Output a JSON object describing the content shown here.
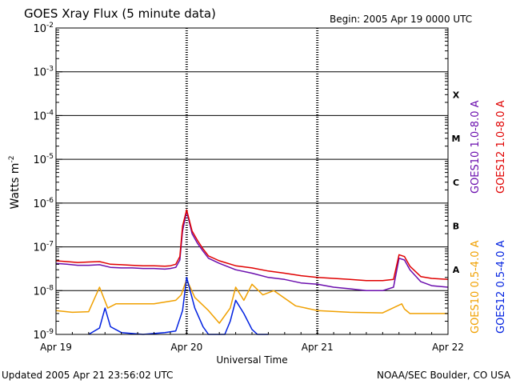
{
  "chart_data": {
    "type": "line",
    "title": "GOES Xray Flux (5 minute data)",
    "begin_label": "Begin:  2005 Apr 19 0000 UTC",
    "xlabel": "Universal Time",
    "ylabel_text": "Watts m",
    "ylabel_exp": "-2",
    "y_scale": "log",
    "ylim": [
      1e-09,
      0.01
    ],
    "xlim": [
      "2005-04-19T00:00",
      "2005-04-22T00:00"
    ],
    "x_ticks": [
      {
        "label": "Apr 19",
        "t": "2005-04-19T00:00"
      },
      {
        "label": "Apr 20",
        "t": "2005-04-20T00:00"
      },
      {
        "label": "Apr 21",
        "t": "2005-04-21T00:00"
      },
      {
        "label": "Apr 22",
        "t": "2005-04-22T00:00"
      }
    ],
    "y_ticks": [
      {
        "base": "10",
        "exp": "-9",
        "value": 1e-09
      },
      {
        "base": "10",
        "exp": "-8",
        "value": 1e-08
      },
      {
        "base": "10",
        "exp": "-7",
        "value": 1e-07
      },
      {
        "base": "10",
        "exp": "-6",
        "value": 1e-06
      },
      {
        "base": "10",
        "exp": "-5",
        "value": 1e-05
      },
      {
        "base": "10",
        "exp": "-4",
        "value": 0.0001
      },
      {
        "base": "10",
        "exp": "-3",
        "value": 0.001
      },
      {
        "base": "10",
        "exp": "-2",
        "value": 0.01
      }
    ],
    "gridlines_at": [
      1e-08,
      1e-07,
      1e-06,
      1e-05,
      0.0001,
      0.001
    ],
    "flare_classes": [
      {
        "label": "X",
        "value": 0.0003
      },
      {
        "label": "M",
        "value": 3e-05
      },
      {
        "label": "C",
        "value": 3e-06
      },
      {
        "label": "B",
        "value": 3e-07
      },
      {
        "label": "A",
        "value": 3e-08
      }
    ],
    "series": [
      {
        "name": "GOES10 1.0-8.0 A",
        "color": "#6a0dad",
        "x": [
          "2005-04-19T00:00",
          "2005-04-19T02:00",
          "2005-04-19T04:00",
          "2005-04-19T06:00",
          "2005-04-19T08:00",
          "2005-04-19T10:00",
          "2005-04-19T12:00",
          "2005-04-19T14:00",
          "2005-04-19T16:00",
          "2005-04-19T18:00",
          "2005-04-19T20:00",
          "2005-04-19T21:00",
          "2005-04-19T22:00",
          "2005-04-19T22:45",
          "2005-04-19T23:15",
          "2005-04-20T00:00",
          "2005-04-20T01:00",
          "2005-04-20T02:00",
          "2005-04-20T03:00",
          "2005-04-20T04:00",
          "2005-04-20T06:00",
          "2005-04-20T09:00",
          "2005-04-20T12:00",
          "2005-04-20T15:00",
          "2005-04-20T18:00",
          "2005-04-20T21:00",
          "2005-04-21T00:00",
          "2005-04-21T03:00",
          "2005-04-21T06:00",
          "2005-04-21T09:00",
          "2005-04-21T12:00",
          "2005-04-21T14:00",
          "2005-04-21T15:00",
          "2005-04-21T16:00",
          "2005-04-21T17:00",
          "2005-04-21T19:00",
          "2005-04-21T21:00",
          "2005-04-21T24:00"
        ],
        "y": [
          4.2e-08,
          4e-08,
          3.8e-08,
          3.8e-08,
          3.9e-08,
          3.4e-08,
          3.3e-08,
          3.3e-08,
          3.2e-08,
          3.2e-08,
          3.1e-08,
          3.2e-08,
          3.4e-08,
          5e-08,
          2.3e-07,
          6.5e-07,
          2e-07,
          1.2e-07,
          8e-08,
          5.5e-08,
          4.2e-08,
          3e-08,
          2.5e-08,
          2e-08,
          1.8e-08,
          1.5e-08,
          1.4e-08,
          1.2e-08,
          1.1e-08,
          1e-08,
          1e-08,
          1.2e-08,
          5.5e-08,
          5e-08,
          3e-08,
          1.6e-08,
          1.3e-08,
          1.2e-08
        ]
      },
      {
        "name": "GOES12 1.0-8.0 A",
        "color": "#e00000",
        "x": [
          "2005-04-19T00:00",
          "2005-04-19T02:00",
          "2005-04-19T04:00",
          "2005-04-19T06:00",
          "2005-04-19T08:00",
          "2005-04-19T10:00",
          "2005-04-19T12:00",
          "2005-04-19T14:00",
          "2005-04-19T16:00",
          "2005-04-19T18:00",
          "2005-04-19T20:00",
          "2005-04-19T21:00",
          "2005-04-19T22:00",
          "2005-04-19T22:45",
          "2005-04-19T23:15",
          "2005-04-20T00:00",
          "2005-04-20T01:00",
          "2005-04-20T02:00",
          "2005-04-20T03:00",
          "2005-04-20T04:00",
          "2005-04-20T06:00",
          "2005-04-20T09:00",
          "2005-04-20T12:00",
          "2005-04-20T15:00",
          "2005-04-20T18:00",
          "2005-04-20T21:00",
          "2005-04-21T00:00",
          "2005-04-21T03:00",
          "2005-04-21T06:00",
          "2005-04-21T09:00",
          "2005-04-21T12:00",
          "2005-04-21T14:00",
          "2005-04-21T15:00",
          "2005-04-21T16:00",
          "2005-04-21T17:00",
          "2005-04-21T19:00",
          "2005-04-21T21:00",
          "2005-04-21T24:00"
        ],
        "y": [
          4.8e-08,
          4.6e-08,
          4.4e-08,
          4.5e-08,
          4.6e-08,
          4e-08,
          3.9e-08,
          3.8e-08,
          3.7e-08,
          3.7e-08,
          3.6e-08,
          3.7e-08,
          4e-08,
          6e-08,
          3e-07,
          7e-07,
          2.3e-07,
          1.4e-07,
          9e-08,
          6.2e-08,
          4.8e-08,
          3.7e-08,
          3.3e-08,
          2.8e-08,
          2.5e-08,
          2.2e-08,
          2e-08,
          1.9e-08,
          1.8e-08,
          1.7e-08,
          1.7e-08,
          1.8e-08,
          6.6e-08,
          6e-08,
          3.6e-08,
          2.1e-08,
          1.9e-08,
          1.8e-08
        ]
      },
      {
        "name": "GOES10 0.5-4.0 A",
        "color": "#f0a000",
        "x": [
          "2005-04-19T00:00",
          "2005-04-19T03:00",
          "2005-04-19T06:00",
          "2005-04-19T08:00",
          "2005-04-19T09:30",
          "2005-04-19T11:00",
          "2005-04-19T14:00",
          "2005-04-19T18:00",
          "2005-04-19T22:00",
          "2005-04-19T23:00",
          "2005-04-20T00:00",
          "2005-04-20T01:30",
          "2005-04-20T04:00",
          "2005-04-20T06:00",
          "2005-04-20T08:00",
          "2005-04-20T09:00",
          "2005-04-20T10:30",
          "2005-04-20T12:00",
          "2005-04-20T14:00",
          "2005-04-20T16:00",
          "2005-04-20T20:00",
          "2005-04-21T00:00",
          "2005-04-21T06:00",
          "2005-04-21T12:00",
          "2005-04-21T15:30",
          "2005-04-21T16:00",
          "2005-04-21T17:00",
          "2005-04-21T24:00"
        ],
        "y": [
          3.5e-09,
          3.2e-09,
          3.3e-09,
          1.2e-08,
          4e-09,
          5e-09,
          5e-09,
          5e-09,
          6e-09,
          8e-09,
          1.8e-08,
          7e-09,
          3.5e-09,
          1.8e-09,
          4e-09,
          1.2e-08,
          6e-09,
          1.4e-08,
          8e-09,
          1e-08,
          4.5e-09,
          3.5e-09,
          3.2e-09,
          3.1e-09,
          5e-09,
          3.8e-09,
          3e-09,
          3e-09
        ]
      },
      {
        "name": "GOES12 0.5-4.0 A",
        "color": "#0020e0",
        "x": [
          "2005-04-19T06:00",
          "2005-04-19T08:00",
          "2005-04-19T09:00",
          "2005-04-19T10:00",
          "2005-04-19T12:00",
          "2005-04-19T16:00",
          "2005-04-19T20:00",
          "2005-04-19T22:00",
          "2005-04-19T23:15",
          "2005-04-20T00:00",
          "2005-04-20T01:30",
          "2005-04-20T03:00",
          "2005-04-20T04:00",
          "2005-04-20T07:00",
          "2005-04-20T08:00",
          "2005-04-20T09:00",
          "2005-04-20T10:30",
          "2005-04-20T12:00",
          "2005-04-20T13:00",
          "2005-04-20T15:00"
        ],
        "y": [
          1e-09,
          1.4e-09,
          4e-09,
          1.5e-09,
          1.1e-09,
          1e-09,
          1.1e-09,
          1.2e-09,
          3.5e-09,
          2e-08,
          4e-09,
          1.5e-09,
          1e-09,
          1e-09,
          2e-09,
          6e-09,
          3e-09,
          1.3e-09,
          1e-09,
          1e-09
        ]
      }
    ]
  },
  "footer": {
    "updated": "Updated 2005 Apr 21 23:56:02 UTC",
    "credit": "NOAA/SEC Boulder, CO USA"
  }
}
